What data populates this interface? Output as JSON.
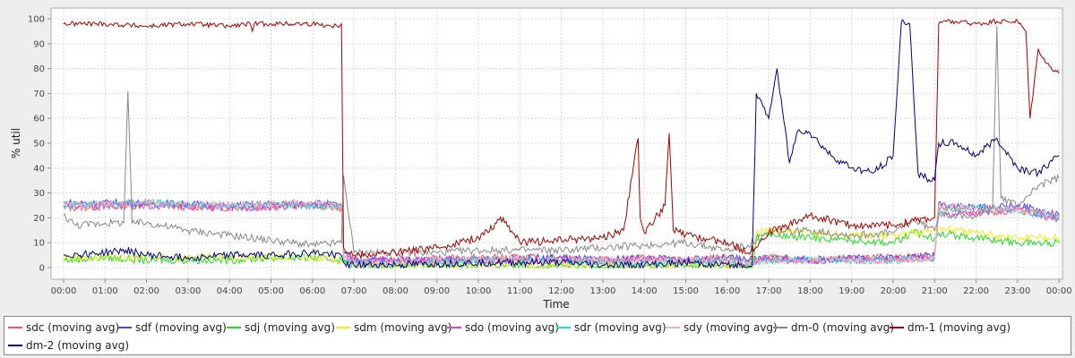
{
  "chart_data": {
    "type": "line",
    "title": "",
    "xlabel": "Time",
    "ylabel": "% util",
    "x_ticks": [
      "00:00",
      "01:00",
      "02:00",
      "03:00",
      "04:00",
      "05:00",
      "06:00",
      "07:00",
      "08:00",
      "09:00",
      "10:00",
      "11:00",
      "12:00",
      "13:00",
      "14:00",
      "15:00",
      "16:00",
      "17:00",
      "18:00",
      "19:00",
      "20:00",
      "21:00",
      "22:00",
      "23:00",
      "00:00"
    ],
    "y_ticks": [
      0,
      10,
      20,
      30,
      40,
      50,
      60,
      70,
      80,
      90,
      100
    ],
    "xlim_hours": [
      0,
      24
    ],
    "ylim": [
      0,
      100
    ],
    "grid": true,
    "legend_position": "bottom",
    "series": [
      {
        "name": "sdc (moving avg)",
        "color": "#ff5555",
        "x": [
          0,
          2,
          4,
          6,
          6.7,
          6.75,
          7,
          8,
          10,
          12,
          13,
          14,
          15,
          16,
          16.5,
          17,
          18,
          19,
          20,
          21,
          21.1,
          22,
          23,
          24
        ],
        "y": [
          24,
          25,
          24,
          25,
          24,
          6,
          3,
          3,
          4,
          4,
          3,
          4,
          3,
          4,
          3,
          4,
          3,
          4,
          4,
          5,
          24,
          22,
          23,
          20
        ]
      },
      {
        "name": "sdf (moving avg)",
        "color": "#4444ff",
        "x": [
          0,
          2,
          4,
          6,
          6.7,
          6.75,
          7,
          8,
          10,
          12,
          13,
          14,
          15,
          16,
          16.5,
          17,
          18,
          19,
          20,
          21,
          21.1,
          22,
          23,
          24
        ],
        "y": [
          26,
          26,
          25,
          26,
          25,
          6,
          3,
          3,
          3,
          4,
          3,
          4,
          3,
          4,
          3,
          4,
          3,
          4,
          4,
          5,
          26,
          24,
          25,
          21
        ]
      },
      {
        "name": "sdj (moving avg)",
        "color": "#22dd22",
        "x": [
          0,
          1,
          2,
          3,
          4,
          5,
          6,
          6.7,
          6.75,
          7,
          9,
          11,
          13,
          14,
          15,
          16,
          16.6,
          16.7,
          17,
          18,
          19,
          20,
          20.5,
          21,
          21.1,
          22,
          23,
          24
        ],
        "y": [
          3,
          4,
          3,
          3,
          3,
          4,
          4,
          3,
          2,
          1,
          1,
          1,
          0,
          0,
          1,
          0,
          0,
          12,
          13,
          12,
          11,
          10,
          14,
          12,
          14,
          12,
          10,
          10
        ]
      },
      {
        "name": "sdm (moving avg)",
        "color": "#eeee22",
        "x": [
          0,
          2,
          4,
          6,
          6.75,
          7,
          10,
          13,
          16,
          16.6,
          16.7,
          17,
          18,
          19,
          20,
          21,
          21.1,
          22,
          23,
          24
        ],
        "y": [
          4,
          4,
          4,
          4,
          3,
          1,
          1,
          1,
          1,
          1,
          14,
          15,
          14,
          13,
          13,
          15,
          16,
          14,
          12,
          12
        ]
      },
      {
        "name": "sdo (moving avg)",
        "color": "#dd44dd",
        "x": [
          0,
          2,
          4,
          6,
          6.7,
          6.75,
          7,
          8,
          10,
          12,
          14,
          16,
          16.5,
          17,
          18,
          19,
          20,
          21,
          21.1,
          22,
          23,
          24
        ],
        "y": [
          25,
          25,
          24,
          25,
          25,
          4,
          2,
          3,
          3,
          3,
          3,
          3,
          2,
          3,
          3,
          3,
          3,
          4,
          22,
          22,
          24,
          19
        ]
      },
      {
        "name": "sdr (moving avg)",
        "color": "#22dddd",
        "x": [
          0,
          2,
          4,
          6,
          6.7,
          6.75,
          7,
          8,
          10,
          12,
          14,
          16,
          16.5,
          17,
          18,
          19,
          20,
          21,
          21.1,
          22,
          23,
          24
        ],
        "y": [
          25,
          26,
          25,
          25,
          25,
          4,
          2,
          2,
          3,
          3,
          2,
          3,
          2,
          3,
          3,
          3,
          3,
          4,
          23,
          24,
          23,
          20
        ]
      },
      {
        "name": "sdy (moving avg)",
        "color": "#ffaaaa",
        "x": [
          0,
          2,
          4,
          6,
          6.7,
          6.75,
          7,
          8,
          10,
          12,
          14,
          16,
          16.5,
          17,
          18,
          19,
          20,
          21,
          21.1,
          22,
          23,
          24
        ],
        "y": [
          25,
          26,
          25,
          26,
          25,
          4,
          2,
          2,
          3,
          3,
          3,
          3,
          2,
          3,
          3,
          3,
          3,
          4,
          25,
          24,
          23,
          21
        ]
      },
      {
        "name": "dm-0 (moving avg)",
        "color": "#888888",
        "x": [
          0,
          0.3,
          1,
          1.45,
          1.55,
          1.65,
          2,
          3,
          4,
          5,
          6,
          6.7,
          6.75,
          7,
          8,
          9,
          10,
          11,
          12,
          13,
          14,
          15,
          16,
          16.5,
          17,
          18,
          19,
          20,
          20.5,
          21,
          21.1,
          21.8,
          22.4,
          22.5,
          22.6,
          23,
          23.5,
          24
        ],
        "y": [
          21,
          17,
          18,
          18,
          71,
          18,
          18,
          15,
          13,
          11,
          9,
          10,
          37,
          6,
          6,
          6,
          7,
          7,
          7,
          8,
          9,
          10,
          7,
          9,
          14,
          15,
          13,
          14,
          19,
          15,
          22,
          20,
          25,
          97,
          28,
          25,
          33,
          36
        ]
      },
      {
        "name": "dm-1 (moving avg)",
        "color": "#aa0000",
        "x": [
          0,
          1,
          2,
          3,
          4,
          4.5,
          4.55,
          4.6,
          5,
          6,
          6.6,
          6.7,
          6.75,
          7,
          8,
          9,
          10,
          10.6,
          11,
          12,
          13,
          13.5,
          13.85,
          13.9,
          14,
          14.5,
          14.6,
          14.7,
          15,
          16,
          16.5,
          17,
          18,
          19,
          20,
          20.5,
          21,
          21.1,
          21.3,
          22,
          22.5,
          23,
          23.2,
          23.3,
          23.5,
          23.7,
          24
        ],
        "y": [
          98,
          98,
          97,
          98,
          97,
          98,
          95,
          98,
          98,
          98,
          97,
          98,
          8,
          5,
          6,
          8,
          12,
          20,
          10,
          11,
          12,
          15,
          52,
          20,
          14,
          25,
          54,
          15,
          13,
          10,
          6,
          14,
          21,
          17,
          17,
          19,
          20,
          98,
          99,
          98,
          99,
          99,
          95,
          60,
          88,
          82,
          78
        ]
      },
      {
        "name": "dm-2 (moving avg)",
        "color": "#000088",
        "x": [
          0,
          1,
          1.5,
          2,
          3,
          4,
          5,
          6,
          6.7,
          6.75,
          7,
          8,
          10,
          12,
          13,
          14,
          15,
          16,
          16.6,
          16.7,
          17,
          17.2,
          17.5,
          17.7,
          17.9,
          18,
          18.5,
          19,
          19.5,
          20,
          20.2,
          20.4,
          20.6,
          20.8,
          21,
          21.1,
          21.5,
          22,
          22.5,
          23,
          23.5,
          24
        ],
        "y": [
          5,
          6,
          7,
          5,
          4,
          5,
          5,
          6,
          5,
          2,
          1,
          1,
          2,
          2,
          1,
          1,
          2,
          1,
          1,
          70,
          60,
          80,
          42,
          55,
          55,
          54,
          45,
          40,
          38,
          45,
          99,
          98,
          38,
          36,
          35,
          50,
          50,
          45,
          52,
          40,
          38,
          45
        ]
      }
    ]
  }
}
